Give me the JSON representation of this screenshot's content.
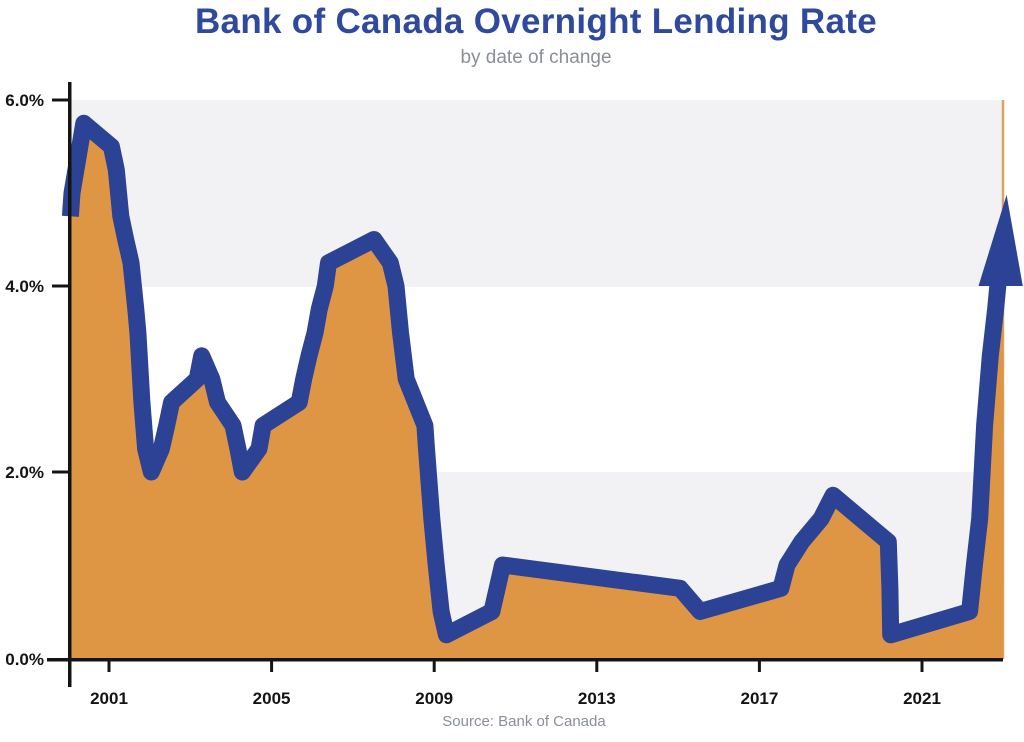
{
  "title": "Bank of Canada Overnight Lending Rate",
  "subtitle": "by date of change",
  "source": "Source: Bank of Canada",
  "colors": {
    "title_blue": "#2F4A9C",
    "subtitle_gray": "#8A8F97",
    "line_blue": "#2C4295",
    "fill_orange": "#DF9644",
    "band_gray": "#F2F2F4",
    "plot_border_tan": "#DCA35F",
    "axis_black": "#141414"
  },
  "chart_data": {
    "type": "area",
    "title": "Bank of Canada Overnight Lending Rate",
    "subtitle": "by date of change",
    "xlabel": "",
    "ylabel": "",
    "unit": "percent",
    "x_range": [
      2000,
      2023
    ],
    "y_range": [
      0,
      6
    ],
    "grid": "alternating horizontal bands",
    "legend": "none",
    "background_bands": [
      [
        0,
        2
      ],
      [
        4,
        6
      ]
    ],
    "x_ticks": [
      2001,
      2005,
      2009,
      2013,
      2017,
      2021
    ],
    "y_ticks": [
      {
        "label": "6.0%",
        "value": 6
      },
      {
        "label": "4.0%",
        "value": 4
      },
      {
        "label": "2.0%",
        "value": 2
      },
      {
        "label": "0.0%",
        "value": 0
      }
    ],
    "series": [
      {
        "name": "Overnight lending rate by date of change",
        "points": [
          [
            2000.05,
            4.75
          ],
          [
            2000.09,
            5.0
          ],
          [
            2000.38,
            5.75
          ],
          [
            2001.06,
            5.5
          ],
          [
            2001.18,
            5.25
          ],
          [
            2001.29,
            4.75
          ],
          [
            2001.41,
            4.5
          ],
          [
            2001.54,
            4.25
          ],
          [
            2001.66,
            3.75
          ],
          [
            2001.71,
            3.5
          ],
          [
            2001.81,
            2.75
          ],
          [
            2001.9,
            2.25
          ],
          [
            2002.04,
            2.0
          ],
          [
            2002.29,
            2.25
          ],
          [
            2002.42,
            2.5
          ],
          [
            2002.54,
            2.75
          ],
          [
            2003.17,
            3.0
          ],
          [
            2003.28,
            3.25
          ],
          [
            2003.53,
            3.0
          ],
          [
            2003.67,
            2.75
          ],
          [
            2004.05,
            2.5
          ],
          [
            2004.17,
            2.25
          ],
          [
            2004.28,
            2.0
          ],
          [
            2004.69,
            2.25
          ],
          [
            2004.79,
            2.5
          ],
          [
            2005.68,
            2.75
          ],
          [
            2005.79,
            3.0
          ],
          [
            2005.92,
            3.25
          ],
          [
            2006.07,
            3.5
          ],
          [
            2006.17,
            3.75
          ],
          [
            2006.32,
            4.0
          ],
          [
            2006.4,
            4.25
          ],
          [
            2007.52,
            4.5
          ],
          [
            2007.92,
            4.25
          ],
          [
            2008.06,
            4.0
          ],
          [
            2008.17,
            3.5
          ],
          [
            2008.31,
            3.0
          ],
          [
            2008.77,
            2.5
          ],
          [
            2008.81,
            2.25
          ],
          [
            2008.94,
            1.5
          ],
          [
            2009.05,
            1.0
          ],
          [
            2009.17,
            0.5
          ],
          [
            2009.3,
            0.25
          ],
          [
            2010.42,
            0.5
          ],
          [
            2010.55,
            0.75
          ],
          [
            2010.68,
            1.0
          ],
          [
            2015.05,
            0.75
          ],
          [
            2015.54,
            0.5
          ],
          [
            2017.53,
            0.75
          ],
          [
            2017.68,
            1.0
          ],
          [
            2018.04,
            1.25
          ],
          [
            2018.52,
            1.5
          ],
          [
            2018.81,
            1.75
          ],
          [
            2020.17,
            1.25
          ],
          [
            2020.21,
            0.75
          ],
          [
            2020.23,
            0.25
          ],
          [
            2022.17,
            0.5
          ],
          [
            2022.29,
            1.0
          ],
          [
            2022.42,
            1.5
          ],
          [
            2022.54,
            2.5
          ],
          [
            2022.68,
            3.25
          ],
          [
            2022.81,
            3.75
          ],
          [
            2022.92,
            4.25
          ]
        ]
      }
    ],
    "fill_end": [
      2023.0,
      4.6
    ],
    "annotation": {
      "type": "up-arrow",
      "meaning": "rate rising rapidly at right edge (2022 hikes)",
      "tip": [
        2023.08,
        4.98
      ],
      "base_left": [
        2022.39,
        4.0
      ],
      "base_right": [
        2023.48,
        4.0
      ]
    }
  }
}
